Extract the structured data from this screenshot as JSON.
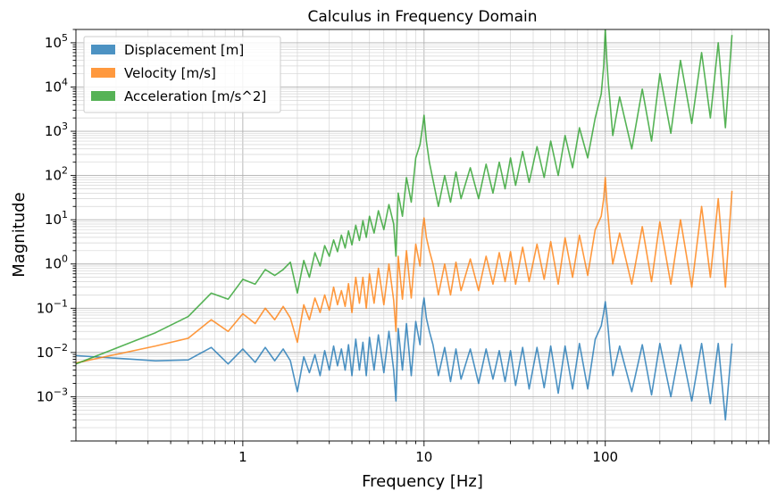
{
  "chart_data": {
    "type": "line",
    "title": "Calculus in Frequency Domain",
    "xlabel": "Frequency [Hz]",
    "ylabel": "Magnitude",
    "xscale": "log",
    "yscale": "log",
    "xlim": [
      0.12,
      800
    ],
    "ylim": [
      0.0001,
      200000
    ],
    "grid": true,
    "legend_position": "top-left",
    "x_ticks": [
      {
        "value": 1,
        "label": "1"
      },
      {
        "value": 10,
        "label": "10"
      },
      {
        "value": 100,
        "label": "100"
      }
    ],
    "y_ticks": [
      {
        "value": 0.001,
        "base": "10",
        "exp": "−3"
      },
      {
        "value": 0.01,
        "base": "10",
        "exp": "−2"
      },
      {
        "value": 0.1,
        "base": "10",
        "exp": "−1"
      },
      {
        "value": 1,
        "base": "10",
        "exp": "0"
      },
      {
        "value": 10,
        "base": "10",
        "exp": "1"
      },
      {
        "value": 100,
        "base": "10",
        "exp": "2"
      },
      {
        "value": 1000,
        "base": "10",
        "exp": "3"
      },
      {
        "value": 10000,
        "base": "10",
        "exp": "4"
      },
      {
        "value": 100000,
        "base": "10",
        "exp": "5"
      }
    ],
    "series": [
      {
        "name": "Displacement [m]",
        "color": "#1f77b4",
        "x": [
          0.12,
          0.33,
          0.5,
          0.67,
          0.83,
          1.0,
          1.17,
          1.33,
          1.5,
          1.67,
          1.83,
          2.0,
          2.17,
          2.33,
          2.5,
          2.67,
          2.83,
          3.0,
          3.17,
          3.33,
          3.5,
          3.67,
          3.83,
          4.0,
          4.2,
          4.4,
          4.6,
          4.8,
          5.0,
          5.3,
          5.6,
          6.0,
          6.4,
          6.8,
          7.0,
          7.2,
          7.6,
          8.0,
          8.5,
          9.0,
          9.5,
          9.8,
          10.0,
          10.3,
          10.7,
          11.2,
          12,
          13,
          14,
          15,
          16,
          18,
          20,
          22,
          24,
          26,
          28,
          30,
          32,
          35,
          38,
          42,
          46,
          50,
          55,
          60,
          66,
          72,
          80,
          88,
          95,
          98,
          100,
          102,
          104,
          106,
          110,
          120,
          140,
          160,
          180,
          200,
          230,
          260,
          300,
          340,
          380,
          420,
          460,
          500
        ],
        "values": [
          0.0085,
          0.0065,
          0.0068,
          0.013,
          0.0055,
          0.012,
          0.006,
          0.013,
          0.0065,
          0.012,
          0.0065,
          0.0013,
          0.008,
          0.0035,
          0.009,
          0.003,
          0.011,
          0.004,
          0.014,
          0.005,
          0.012,
          0.004,
          0.015,
          0.003,
          0.02,
          0.004,
          0.017,
          0.003,
          0.022,
          0.004,
          0.025,
          0.0035,
          0.03,
          0.004,
          0.0008,
          0.035,
          0.004,
          0.045,
          0.003,
          0.05,
          0.015,
          0.1,
          0.17,
          0.06,
          0.03,
          0.015,
          0.003,
          0.013,
          0.0022,
          0.012,
          0.0025,
          0.012,
          0.002,
          0.012,
          0.0025,
          0.011,
          0.0022,
          0.011,
          0.0018,
          0.013,
          0.0015,
          0.013,
          0.0016,
          0.014,
          0.0012,
          0.014,
          0.0015,
          0.016,
          0.0015,
          0.02,
          0.04,
          0.08,
          0.14,
          0.07,
          0.03,
          0.012,
          0.003,
          0.014,
          0.0013,
          0.015,
          0.0011,
          0.016,
          0.001,
          0.015,
          0.0008,
          0.016,
          0.0007,
          0.016,
          0.0003,
          0.016
        ]
      },
      {
        "name": "Velocity [m/s]",
        "color": "#ff7f0e",
        "x": [
          0.12,
          0.33,
          0.5,
          0.67,
          0.83,
          1.0,
          1.17,
          1.33,
          1.5,
          1.67,
          1.83,
          2.0,
          2.17,
          2.33,
          2.5,
          2.67,
          2.83,
          3.0,
          3.17,
          3.33,
          3.5,
          3.67,
          3.83,
          4.0,
          4.2,
          4.4,
          4.6,
          4.8,
          5.0,
          5.3,
          5.6,
          6.0,
          6.4,
          6.8,
          7.0,
          7.2,
          7.6,
          8.0,
          8.5,
          9.0,
          9.5,
          9.8,
          10.0,
          10.3,
          10.7,
          11.2,
          12,
          13,
          14,
          15,
          16,
          18,
          20,
          22,
          24,
          26,
          28,
          30,
          32,
          35,
          38,
          42,
          46,
          50,
          55,
          60,
          66,
          72,
          80,
          88,
          95,
          98,
          100,
          102,
          104,
          106,
          110,
          120,
          140,
          160,
          180,
          200,
          230,
          260,
          300,
          340,
          380,
          420,
          460,
          500
        ],
        "values": [
          0.0058,
          0.014,
          0.021,
          0.055,
          0.03,
          0.075,
          0.045,
          0.1,
          0.055,
          0.11,
          0.06,
          0.017,
          0.12,
          0.055,
          0.17,
          0.08,
          0.2,
          0.09,
          0.3,
          0.12,
          0.25,
          0.11,
          0.36,
          0.08,
          0.5,
          0.13,
          0.5,
          0.1,
          0.6,
          0.13,
          0.8,
          0.12,
          1.0,
          0.15,
          0.03,
          1.5,
          0.16,
          2.0,
          0.17,
          2.8,
          0.9,
          6.0,
          11.0,
          4.0,
          2.0,
          1.0,
          0.2,
          1.0,
          0.2,
          1.1,
          0.25,
          1.3,
          0.25,
          1.5,
          0.35,
          1.8,
          0.4,
          1.9,
          0.35,
          2.4,
          0.4,
          2.8,
          0.45,
          3.2,
          0.35,
          3.9,
          0.5,
          4.5,
          0.55,
          6.0,
          12.0,
          30.0,
          90.0,
          25.0,
          10.0,
          4.0,
          1.0,
          5.0,
          0.35,
          7.0,
          0.4,
          9.0,
          0.35,
          10.0,
          0.3,
          20.0,
          0.5,
          30.0,
          0.3,
          45.0
        ]
      },
      {
        "name": "Acceleration [m/s^2]",
        "color": "#2ca02c",
        "x": [
          0.12,
          0.33,
          0.5,
          0.67,
          0.83,
          1.0,
          1.17,
          1.33,
          1.5,
          1.67,
          1.83,
          2.0,
          2.17,
          2.33,
          2.5,
          2.67,
          2.83,
          3.0,
          3.17,
          3.33,
          3.5,
          3.67,
          3.83,
          4.0,
          4.2,
          4.4,
          4.6,
          4.8,
          5.0,
          5.3,
          5.6,
          6.0,
          6.4,
          6.8,
          7.0,
          7.2,
          7.6,
          8.0,
          8.5,
          9.0,
          9.5,
          9.8,
          10.0,
          10.3,
          10.7,
          11.2,
          12,
          13,
          14,
          15,
          16,
          18,
          20,
          22,
          24,
          26,
          28,
          30,
          32,
          35,
          38,
          42,
          46,
          50,
          55,
          60,
          66,
          72,
          80,
          88,
          95,
          98,
          100,
          102,
          104,
          106,
          110,
          120,
          140,
          160,
          180,
          200,
          230,
          260,
          300,
          340,
          380,
          420,
          460,
          500
        ],
        "values": [
          0.0055,
          0.028,
          0.065,
          0.22,
          0.16,
          0.45,
          0.35,
          0.75,
          0.55,
          0.75,
          1.1,
          0.22,
          1.2,
          0.5,
          1.8,
          0.9,
          2.6,
          1.5,
          3.5,
          1.9,
          4.5,
          2.3,
          5.6,
          2.7,
          7.5,
          3.4,
          9.5,
          4.0,
          12.0,
          5.0,
          16.0,
          6.0,
          22.0,
          8.0,
          1.5,
          40.0,
          12.0,
          90.0,
          25.0,
          250.0,
          500.0,
          1200.0,
          2300.0,
          600.0,
          200.0,
          80.0,
          20.0,
          100.0,
          25.0,
          120.0,
          30.0,
          150.0,
          30.0,
          180.0,
          40.0,
          200.0,
          50.0,
          250.0,
          60.0,
          350.0,
          70.0,
          450.0,
          90.0,
          600.0,
          100.0,
          800.0,
          150.0,
          1200.0,
          250.0,
          2000.0,
          7000.0,
          30000.0,
          200000.0,
          40000.0,
          12000.0,
          5000.0,
          800.0,
          6000.0,
          400.0,
          9000.0,
          600.0,
          20000.0,
          900.0,
          40000.0,
          1500.0,
          60000.0,
          2000.0,
          100000.0,
          1200.0,
          150000.0
        ]
      }
    ]
  }
}
